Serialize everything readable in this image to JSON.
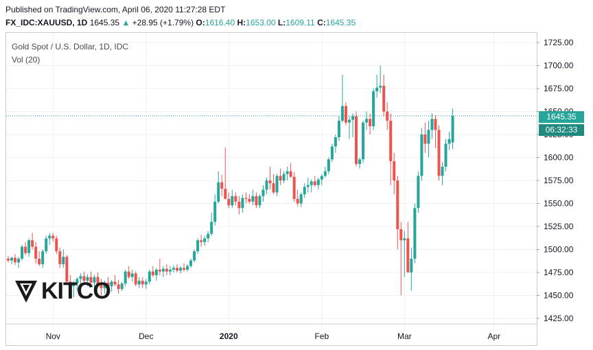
{
  "header": {
    "published": "Published on TradingView.com, April 06, 2020 11:27:28 EDT",
    "symbol": "FX_IDC:XAUUSD, 1D",
    "last": "1645.35",
    "change_arrow": "▲",
    "change": "+28.95 (+1.79%)",
    "o_label": "O:",
    "o_value": "1616.40",
    "h_label": "H:",
    "h_value": "1653.00",
    "l_label": "L:",
    "l_value": "1609.11",
    "c_label": "C:",
    "c_value": "1645.35"
  },
  "pane": {
    "title": "Gold Spot / U.S. Dollar, 1D, IDC",
    "volume_label": "Vol (20)",
    "price_tag": "1645.35",
    "countdown_tag": "06:32:33"
  },
  "logo": {
    "text": "KITCO",
    "icon": "kitco-logo-icon"
  },
  "colors": {
    "up": "#26a69a",
    "down": "#ef5350",
    "grid": "#eef0f3",
    "last_line": "#26a69a"
  },
  "chart_data": {
    "type": "candlestick",
    "title": "Gold Spot / U.S. Dollar, 1D, IDC",
    "ylim": [
      1425,
      1725
    ],
    "y_ticks": [
      "1725.00",
      "1700.00",
      "1675.00",
      "1650.00",
      "1625.00",
      "1600.00",
      "1575.00",
      "1550.00",
      "1525.00",
      "1500.00",
      "1475.00",
      "1450.00",
      "1425.00"
    ],
    "y_tick_values": [
      1725,
      1700,
      1675,
      1650,
      1625,
      1600,
      1575,
      1550,
      1525,
      1500,
      1475,
      1450,
      1425
    ],
    "x_ticks": [
      {
        "label": "Nov",
        "index": 13
      },
      {
        "label": "Dec",
        "index": 40
      },
      {
        "label": "2020",
        "index": 64
      },
      {
        "label": "Feb",
        "index": 91
      },
      {
        "label": "Mar",
        "index": 115
      },
      {
        "label": "Apr",
        "index": 141
      }
    ],
    "last_price": 1645.35,
    "grid": true,
    "candles": [
      [
        1490,
        1493,
        1486,
        1488
      ],
      [
        1488,
        1492,
        1484,
        1491
      ],
      [
        1491,
        1495,
        1483,
        1486
      ],
      [
        1486,
        1492,
        1480,
        1490
      ],
      [
        1490,
        1505,
        1488,
        1503
      ],
      [
        1503,
        1508,
        1494,
        1496
      ],
      [
        1496,
        1512,
        1492,
        1510
      ],
      [
        1510,
        1518,
        1500,
        1503
      ],
      [
        1503,
        1508,
        1485,
        1490
      ],
      [
        1490,
        1498,
        1482,
        1484
      ],
      [
        1484,
        1500,
        1480,
        1498
      ],
      [
        1498,
        1515,
        1495,
        1512
      ],
      [
        1512,
        1518,
        1505,
        1515
      ],
      [
        1515,
        1518,
        1508,
        1512
      ],
      [
        1512,
        1515,
        1495,
        1498
      ],
      [
        1498,
        1502,
        1480,
        1484
      ],
      [
        1484,
        1500,
        1480,
        1492
      ],
      [
        1492,
        1494,
        1462,
        1465
      ],
      [
        1465,
        1472,
        1452,
        1460
      ],
      [
        1460,
        1466,
        1448,
        1463
      ],
      [
        1463,
        1470,
        1455,
        1468
      ],
      [
        1468,
        1474,
        1462,
        1471
      ],
      [
        1471,
        1476,
        1464,
        1466
      ],
      [
        1466,
        1473,
        1460,
        1470
      ],
      [
        1470,
        1476,
        1463,
        1464
      ],
      [
        1464,
        1472,
        1455,
        1470
      ],
      [
        1470,
        1475,
        1460,
        1462
      ],
      [
        1462,
        1468,
        1450,
        1458
      ],
      [
        1458,
        1466,
        1452,
        1464
      ],
      [
        1464,
        1470,
        1458,
        1460
      ],
      [
        1460,
        1467,
        1454,
        1465
      ],
      [
        1465,
        1472,
        1460,
        1462
      ],
      [
        1462,
        1467,
        1452,
        1457
      ],
      [
        1457,
        1465,
        1455,
        1463
      ],
      [
        1463,
        1478,
        1460,
        1476
      ],
      [
        1476,
        1482,
        1468,
        1470
      ],
      [
        1470,
        1478,
        1465,
        1474
      ],
      [
        1474,
        1476,
        1460,
        1462
      ],
      [
        1462,
        1470,
        1458,
        1466
      ],
      [
        1466,
        1470,
        1458,
        1462
      ],
      [
        1462,
        1468,
        1457,
        1465
      ],
      [
        1465,
        1478,
        1462,
        1476
      ],
      [
        1476,
        1482,
        1470,
        1472
      ],
      [
        1472,
        1480,
        1466,
        1478
      ],
      [
        1478,
        1490,
        1472,
        1476
      ],
      [
        1476,
        1482,
        1470,
        1479
      ],
      [
        1479,
        1484,
        1472,
        1476
      ],
      [
        1476,
        1482,
        1472,
        1478
      ],
      [
        1478,
        1483,
        1475,
        1480
      ],
      [
        1480,
        1484,
        1475,
        1477
      ],
      [
        1477,
        1482,
        1474,
        1480
      ],
      [
        1480,
        1485,
        1476,
        1478
      ],
      [
        1478,
        1484,
        1476,
        1482
      ],
      [
        1482,
        1490,
        1480,
        1488
      ],
      [
        1488,
        1500,
        1486,
        1498
      ],
      [
        1498,
        1512,
        1495,
        1510
      ],
      [
        1510,
        1516,
        1503,
        1508
      ],
      [
        1508,
        1515,
        1504,
        1512
      ],
      [
        1512,
        1520,
        1508,
        1517
      ],
      [
        1517,
        1540,
        1515,
        1530
      ],
      [
        1530,
        1560,
        1526,
        1552
      ],
      [
        1552,
        1585,
        1550,
        1573
      ],
      [
        1573,
        1581,
        1558,
        1566
      ],
      [
        1566,
        1611,
        1555,
        1555
      ],
      [
        1555,
        1562,
        1545,
        1548
      ],
      [
        1548,
        1565,
        1545,
        1558
      ],
      [
        1558,
        1562,
        1548,
        1552
      ],
      [
        1552,
        1558,
        1538,
        1545
      ],
      [
        1545,
        1560,
        1540,
        1556
      ],
      [
        1556,
        1562,
        1550,
        1555
      ],
      [
        1555,
        1560,
        1550,
        1552
      ],
      [
        1552,
        1565,
        1548,
        1558
      ],
      [
        1558,
        1562,
        1545,
        1548
      ],
      [
        1548,
        1560,
        1545,
        1558
      ],
      [
        1558,
        1570,
        1552,
        1565
      ],
      [
        1565,
        1578,
        1560,
        1575
      ],
      [
        1575,
        1590,
        1565,
        1572
      ],
      [
        1572,
        1582,
        1560,
        1562
      ],
      [
        1562,
        1582,
        1558,
        1580
      ],
      [
        1580,
        1588,
        1570,
        1575
      ],
      [
        1575,
        1585,
        1572,
        1582
      ],
      [
        1582,
        1590,
        1575,
        1585
      ],
      [
        1585,
        1594,
        1578,
        1579
      ],
      [
        1579,
        1584,
        1552,
        1555
      ],
      [
        1555,
        1565,
        1547,
        1550
      ],
      [
        1550,
        1562,
        1546,
        1560
      ],
      [
        1560,
        1572,
        1556,
        1568
      ],
      [
        1568,
        1578,
        1562,
        1570
      ],
      [
        1570,
        1576,
        1562,
        1574
      ],
      [
        1574,
        1580,
        1568,
        1570
      ],
      [
        1570,
        1578,
        1565,
        1576
      ],
      [
        1576,
        1582,
        1570,
        1580
      ],
      [
        1580,
        1590,
        1578,
        1585
      ],
      [
        1585,
        1600,
        1582,
        1598
      ],
      [
        1598,
        1615,
        1595,
        1612
      ],
      [
        1612,
        1625,
        1605,
        1622
      ],
      [
        1622,
        1645,
        1618,
        1640
      ],
      [
        1640,
        1690,
        1638,
        1656
      ],
      [
        1656,
        1660,
        1635,
        1638
      ],
      [
        1638,
        1645,
        1620,
        1641
      ],
      [
        1641,
        1648,
        1622,
        1645
      ],
      [
        1645,
        1650,
        1590,
        1593
      ],
      [
        1593,
        1600,
        1588,
        1598
      ],
      [
        1598,
        1640,
        1594,
        1638
      ],
      [
        1638,
        1650,
        1630,
        1642
      ],
      [
        1642,
        1648,
        1625,
        1634
      ],
      [
        1634,
        1675,
        1630,
        1672
      ],
      [
        1672,
        1690,
        1665,
        1676
      ],
      [
        1676,
        1700,
        1670,
        1678
      ],
      [
        1678,
        1690,
        1645,
        1650
      ],
      [
        1650,
        1660,
        1630,
        1640
      ],
      [
        1640,
        1648,
        1570,
        1596
      ],
      [
        1596,
        1605,
        1560,
        1575
      ],
      [
        1575,
        1580,
        1500,
        1522
      ],
      [
        1522,
        1530,
        1450,
        1510
      ],
      [
        1510,
        1520,
        1470,
        1512
      ],
      [
        1512,
        1530,
        1478,
        1475
      ],
      [
        1475,
        1502,
        1455,
        1490
      ],
      [
        1490,
        1550,
        1485,
        1545
      ],
      [
        1545,
        1585,
        1540,
        1580
      ],
      [
        1580,
        1632,
        1575,
        1625
      ],
      [
        1625,
        1638,
        1605,
        1615
      ],
      [
        1615,
        1640,
        1600,
        1630
      ],
      [
        1630,
        1648,
        1620,
        1642
      ],
      [
        1642,
        1646,
        1610,
        1630
      ],
      [
        1630,
        1635,
        1575,
        1580
      ],
      [
        1580,
        1595,
        1570,
        1590
      ],
      [
        1590,
        1620,
        1585,
        1615
      ],
      [
        1615,
        1628,
        1608,
        1620
      ],
      [
        1616.4,
        1653,
        1609.11,
        1645.35
      ]
    ]
  }
}
